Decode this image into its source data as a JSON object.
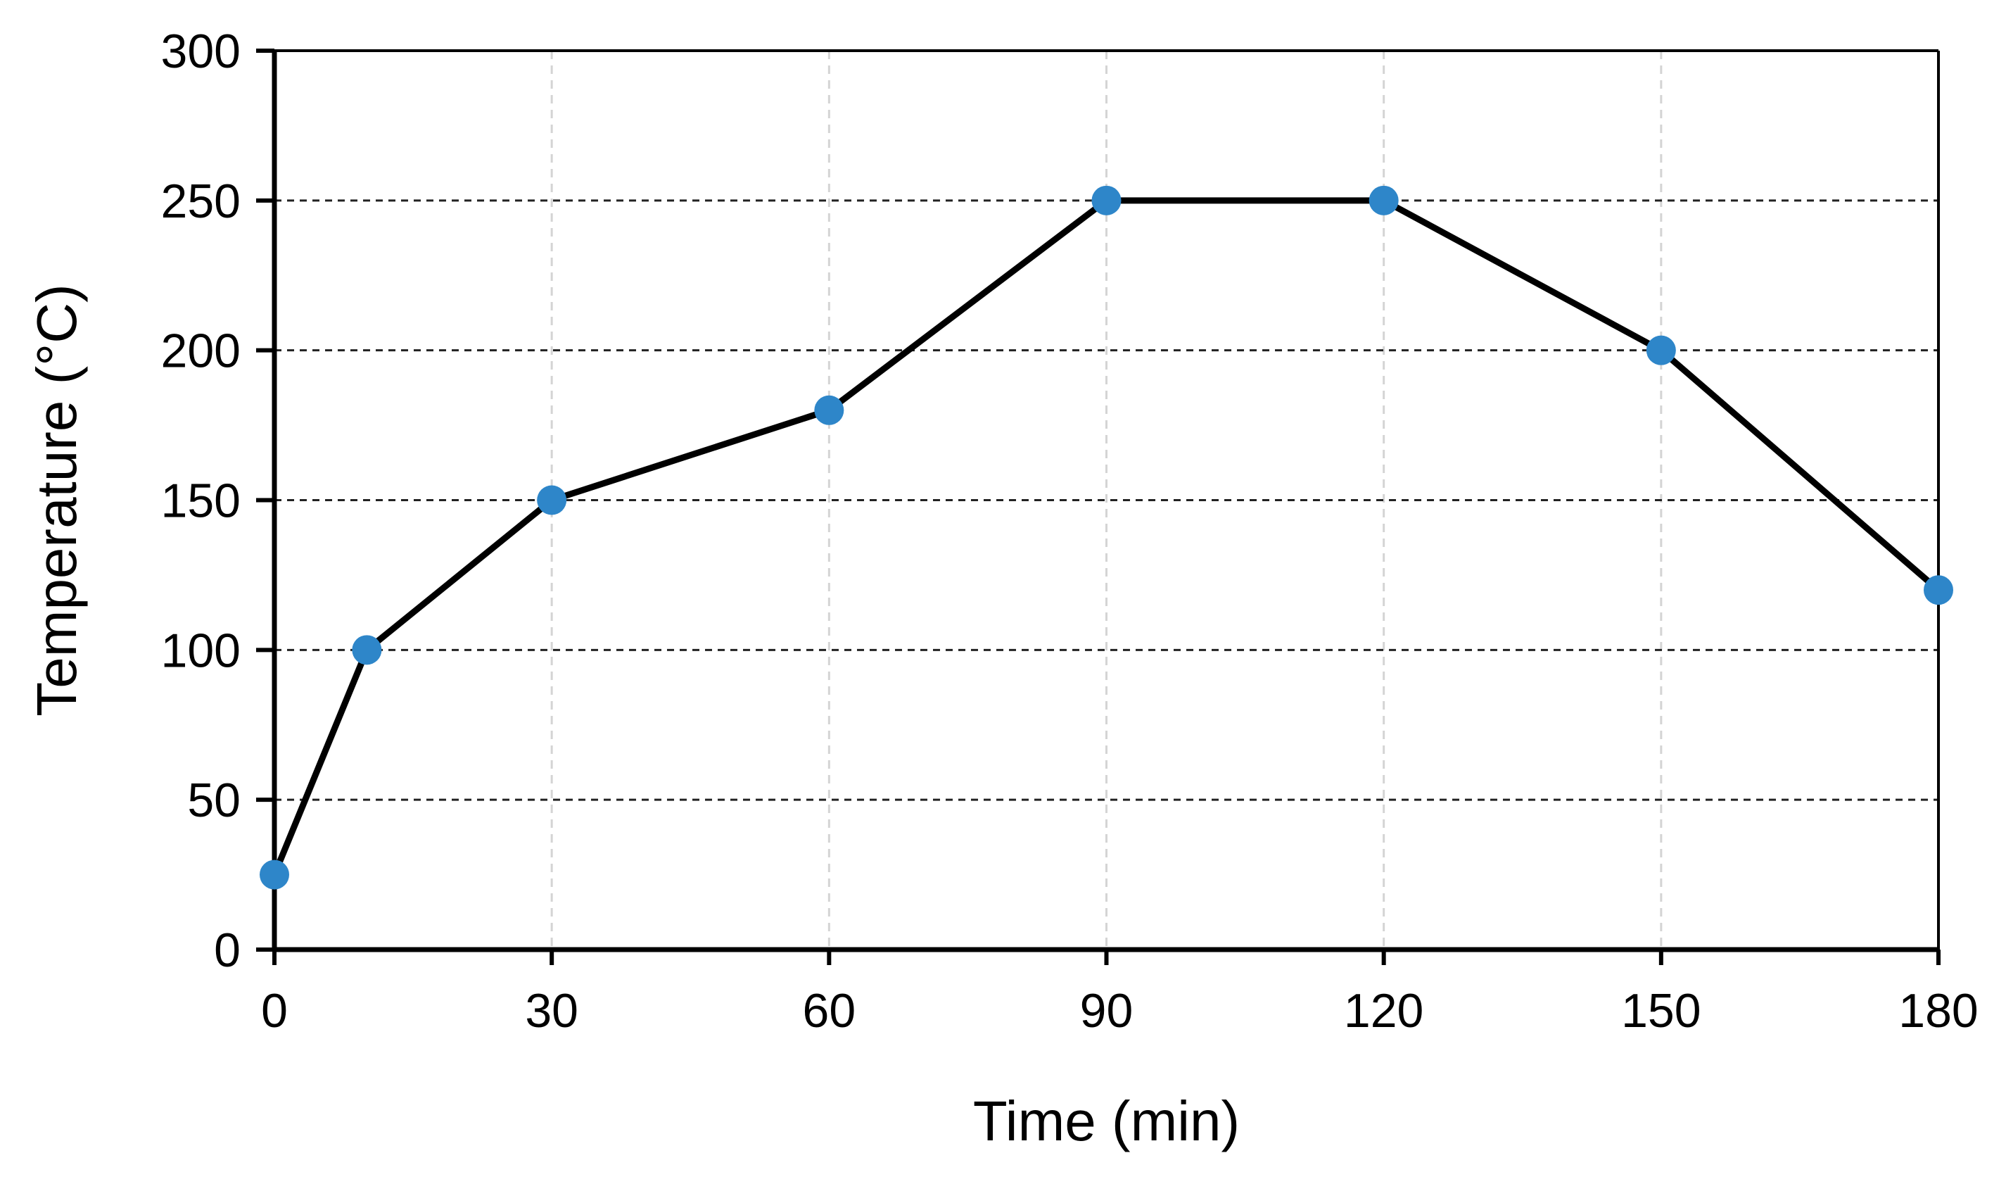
{
  "chart_data": {
    "type": "line",
    "title": "",
    "xlabel": "Time (min)",
    "ylabel": "Temperature (°C)",
    "xlim": [
      0,
      180
    ],
    "ylim": [
      0,
      300
    ],
    "x_ticks": [
      0,
      30,
      60,
      90,
      120,
      150,
      180
    ],
    "y_ticks": [
      0,
      50,
      100,
      150,
      200,
      250,
      300
    ],
    "x_tick_labels": [
      "0",
      "30",
      "60",
      "90",
      "120",
      "150",
      "180"
    ],
    "y_tick_labels": [
      "0",
      "50",
      "100",
      "150",
      "200",
      "250",
      "300"
    ],
    "grid": {
      "horizontal": "dashed",
      "vertical": "dashed-light"
    },
    "legend": "none",
    "series": [
      {
        "x": [
          0,
          10,
          30,
          60,
          90,
          120,
          150,
          180
        ],
        "y": [
          25,
          100,
          150,
          180,
          250,
          250,
          200,
          120
        ],
        "line_color": "#000000",
        "marker_color": "#2E86C9"
      }
    ]
  }
}
